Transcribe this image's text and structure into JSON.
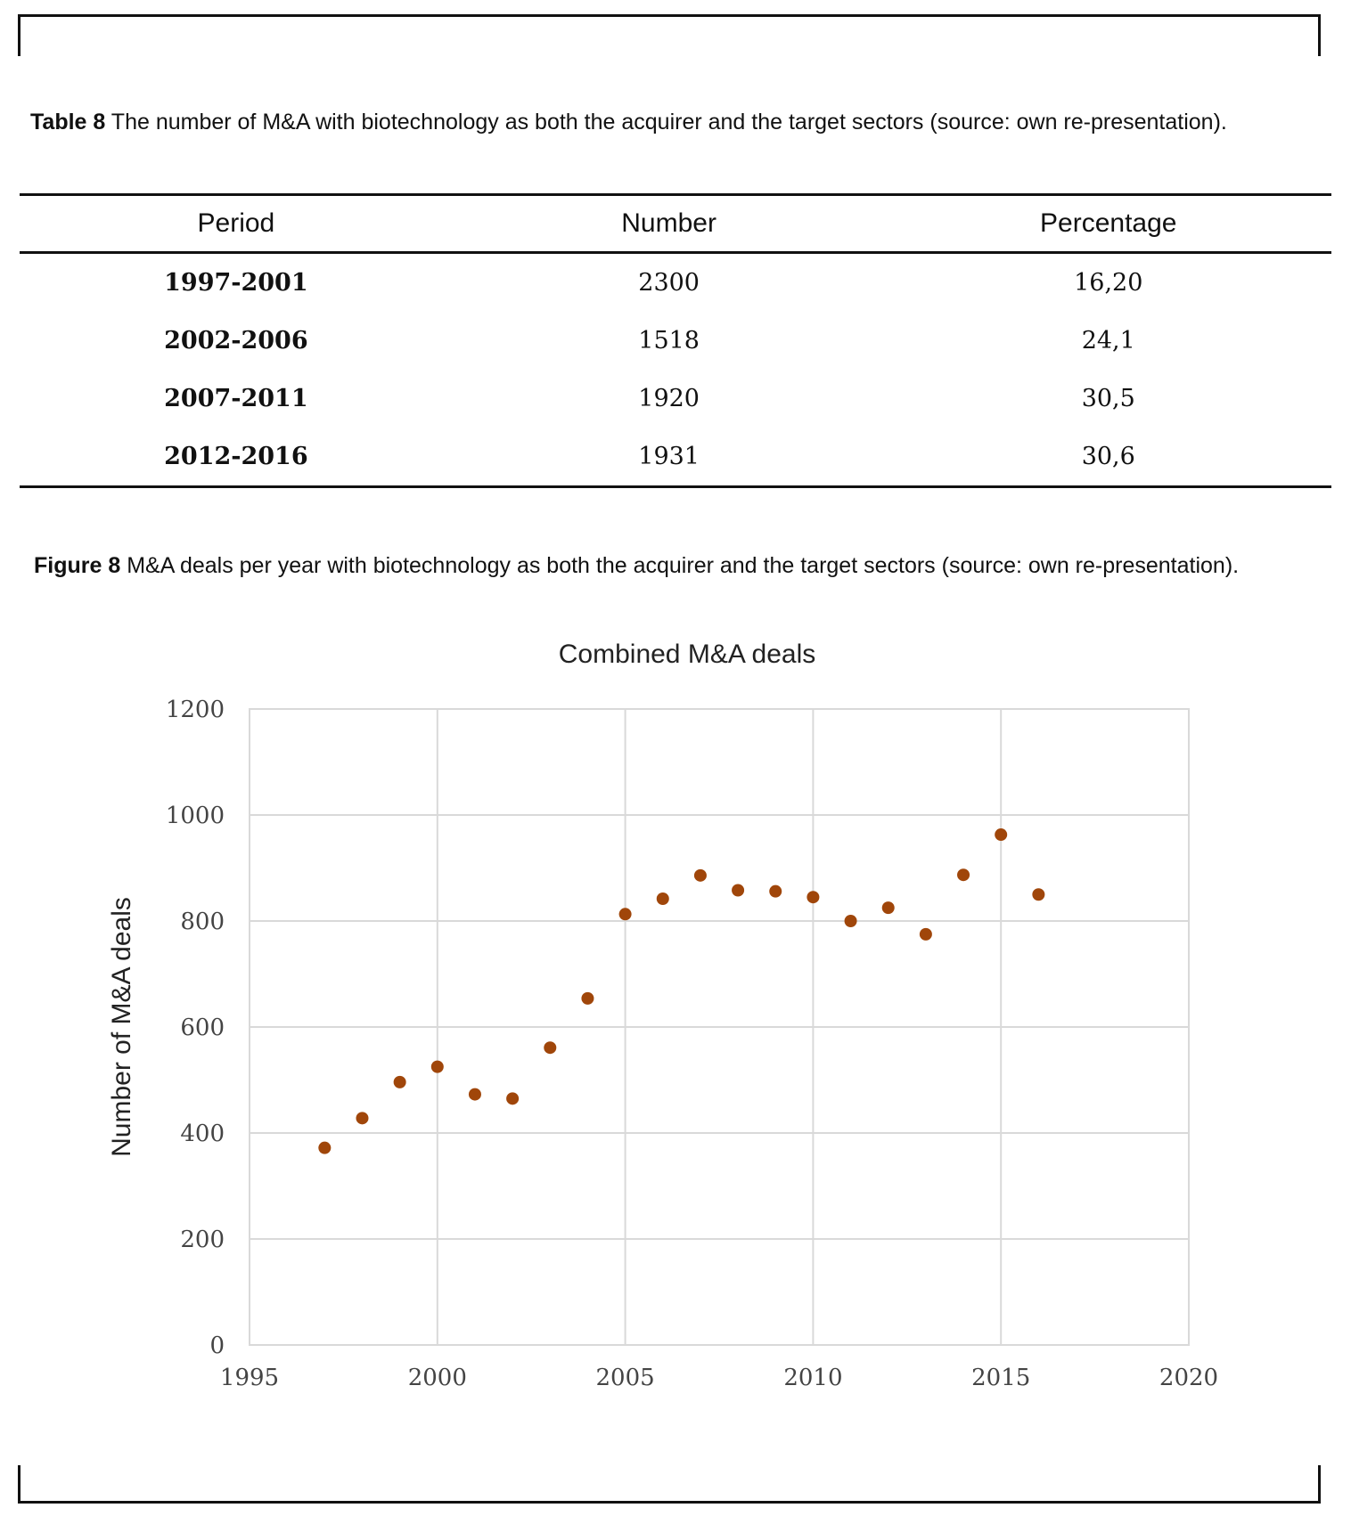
{
  "table": {
    "caption_label": "Table 8",
    "caption_text": "The number of M&A with biotechnology as both the acquirer and the target sectors (source: own re-presentation).",
    "headers": [
      "Period",
      "Number",
      "Percentage"
    ],
    "rows": [
      {
        "period": "1997-2001",
        "number": "2300",
        "percentage": "16,20"
      },
      {
        "period": "2002-2006",
        "number": "1518",
        "percentage": "24,1"
      },
      {
        "period": "2007-2011",
        "number": "1920",
        "percentage": "30,5"
      },
      {
        "period": "2012-2016",
        "number": "1931",
        "percentage": "30,6"
      }
    ]
  },
  "figure": {
    "caption_label": "Figure 8",
    "caption_text": "M&A deals per year with biotechnology as both the acquirer and the target sectors (source: own re-presentation)."
  },
  "chart_data": {
    "type": "scatter",
    "title": "Combined M&A deals",
    "xlabel": "",
    "ylabel": "Number of M&A deals",
    "xlim": [
      1995,
      2020
    ],
    "ylim": [
      0,
      1200
    ],
    "xticks": [
      1995,
      2000,
      2005,
      2010,
      2015,
      2020
    ],
    "yticks": [
      0,
      200,
      400,
      600,
      800,
      1000,
      1200
    ],
    "grid": true,
    "marker_color": "#a0460a",
    "x": [
      1997,
      1998,
      1999,
      2000,
      2001,
      2002,
      2003,
      2004,
      2005,
      2006,
      2007,
      2008,
      2009,
      2010,
      2011,
      2012,
      2013,
      2014,
      2015,
      2016
    ],
    "y": [
      372,
      428,
      496,
      525,
      473,
      465,
      561,
      654,
      813,
      842,
      886,
      858,
      856,
      845,
      800,
      825,
      775,
      887,
      963,
      850
    ]
  }
}
